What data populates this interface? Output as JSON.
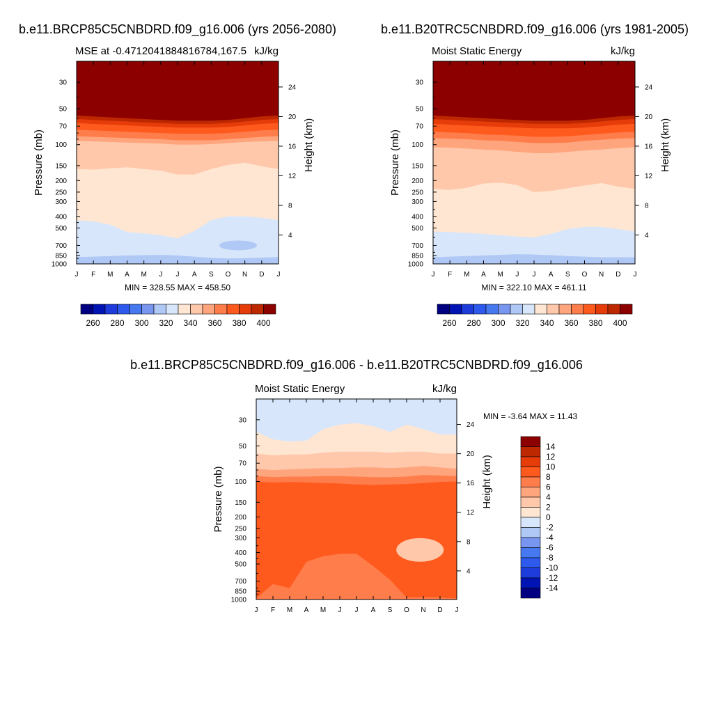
{
  "chart_data": [
    {
      "id": "future",
      "type": "contour",
      "title": "b.e11.BRCP85C5CNBDRD.f09_g16.006 (yrs 2056-2080)",
      "left_string": "MSE at -0.4712041884816784,167.5",
      "right_string": "kJ/kg",
      "ylabel": "Pressure (mb)",
      "ylabel_right": "Height (km)",
      "pressure_ticks": [
        30,
        50,
        70,
        100,
        150,
        200,
        250,
        300,
        400,
        500,
        700,
        850,
        1000
      ],
      "height_ticks": [
        4,
        8,
        12,
        16,
        20,
        24
      ],
      "months": [
        "J",
        "F",
        "M",
        "A",
        "M",
        "J",
        "J",
        "A",
        "S",
        "O",
        "N",
        "D",
        "J"
      ],
      "min_max": "MIN = 328.55 MAX = 458.50",
      "levels": [
        260,
        270,
        280,
        290,
        300,
        310,
        320,
        330,
        340,
        350,
        360,
        370,
        380,
        390,
        400
      ],
      "colorbar_labels": [
        "260",
        "280",
        "300",
        "320",
        "340",
        "360",
        "380",
        "400"
      ],
      "contour_boundaries_p": [
        {
          "level_above": 400,
          "p": [
            57,
            58,
            59,
            60,
            61,
            62,
            63,
            63,
            63,
            62,
            60,
            58,
            57
          ]
        },
        {
          "level_above": 390,
          "p": [
            61,
            62,
            63,
            64,
            65,
            66,
            67,
            67,
            67,
            66,
            64,
            62,
            61
          ]
        },
        {
          "level_above": 380,
          "p": [
            66,
            67,
            68,
            69,
            70,
            71,
            72,
            72,
            72,
            71,
            69,
            67,
            66
          ]
        },
        {
          "level_above": 370,
          "p": [
            75,
            76,
            77,
            78,
            79,
            80,
            81,
            81,
            81,
            80,
            78,
            76,
            75
          ]
        },
        {
          "level_above": 360,
          "p": [
            85,
            86,
            87,
            88,
            89,
            90,
            92,
            92,
            92,
            90,
            88,
            86,
            85
          ]
        },
        {
          "level_above": 350,
          "p": [
            93,
            94,
            95,
            96,
            97,
            98,
            100,
            100,
            99,
            97,
            95,
            94,
            93
          ]
        },
        {
          "level_above": 340,
          "p": [
            160,
            162,
            158,
            155,
            160,
            165,
            178,
            178,
            160,
            148,
            142,
            152,
            160
          ]
        },
        {
          "level_above": 330,
          "p": [
            430,
            440,
            470,
            540,
            555,
            575,
            610,
            530,
            430,
            400,
            400,
            410,
            430
          ]
        },
        {
          "level_above": 320,
          "p": [
            875,
            870,
            860,
            850,
            845,
            840,
            850,
            870,
            890,
            900,
            895,
            885,
            875
          ]
        }
      ],
      "bubbles": [
        {
          "level": 320,
          "month_index": 9.6,
          "p": 700
        }
      ]
    },
    {
      "id": "present",
      "type": "contour",
      "title": "b.e11.B20TRC5CNBDRD.f09_g16.006 (yrs 1981-2005)",
      "left_string": "Moist Static Energy",
      "right_string": "kJ/kg",
      "ylabel": "Pressure (mb)",
      "ylabel_right": "Height (km)",
      "pressure_ticks": [
        30,
        50,
        70,
        100,
        150,
        200,
        250,
        300,
        400,
        500,
        700,
        850,
        1000
      ],
      "height_ticks": [
        4,
        8,
        12,
        16,
        20,
        24
      ],
      "months": [
        "J",
        "F",
        "M",
        "A",
        "M",
        "J",
        "J",
        "A",
        "S",
        "O",
        "N",
        "D",
        "J"
      ],
      "min_max": "MIN = 322.10 MAX = 461.11",
      "levels": [
        260,
        270,
        280,
        290,
        300,
        310,
        320,
        330,
        340,
        350,
        360,
        370,
        380,
        390,
        400
      ],
      "colorbar_labels": [
        "260",
        "280",
        "300",
        "320",
        "340",
        "360",
        "380",
        "400"
      ],
      "contour_boundaries_p": [
        {
          "level_above": 400,
          "p": [
            57,
            58,
            59,
            60,
            61,
            62,
            63,
            63,
            63,
            62,
            60,
            58,
            57
          ]
        },
        {
          "level_above": 390,
          "p": [
            61,
            62,
            63,
            64,
            65,
            66,
            67,
            67,
            67,
            66,
            64,
            62,
            61
          ]
        },
        {
          "level_above": 380,
          "p": [
            67,
            68,
            69,
            70,
            71,
            72,
            73,
            73,
            73,
            72,
            70,
            68,
            67
          ]
        },
        {
          "level_above": 370,
          "p": [
            78,
            79,
            80,
            82,
            83,
            84,
            86,
            86,
            85,
            83,
            81,
            79,
            78
          ]
        },
        {
          "level_above": 360,
          "p": [
            88,
            89,
            90,
            92,
            93,
            95,
            97,
            97,
            96,
            93,
            91,
            89,
            88
          ]
        },
        {
          "level_above": 350,
          "p": [
            105,
            106,
            108,
            110,
            112,
            115,
            118,
            118,
            115,
            112,
            110,
            107,
            105
          ]
        },
        {
          "level_above": 340,
          "p": [
            235,
            240,
            230,
            212,
            208,
            218,
            250,
            245,
            232,
            220,
            210,
            225,
            235
          ]
        },
        {
          "level_above": 330,
          "p": [
            535,
            540,
            550,
            560,
            575,
            590,
            600,
            560,
            510,
            490,
            490,
            510,
            535
          ]
        },
        {
          "level_above": 320,
          "p": [
            880,
            870,
            860,
            850,
            840,
            830,
            835,
            845,
            860,
            870,
            880,
            880,
            880
          ]
        }
      ],
      "bubbles": []
    },
    {
      "id": "difference",
      "type": "contour",
      "title": "b.e11.BRCP85C5CNBDRD.f09_g16.006 - b.e11.B20TRC5CNBDRD.f09_g16.006",
      "left_string": "Moist Static Energy",
      "right_string": "kJ/kg",
      "ylabel": "Pressure (mb)",
      "ylabel_right": "Height (km)",
      "pressure_ticks": [
        30,
        50,
        70,
        100,
        150,
        200,
        250,
        300,
        400,
        500,
        700,
        850,
        1000
      ],
      "height_ticks": [
        4,
        8,
        12,
        16,
        20,
        24
      ],
      "months": [
        "J",
        "F",
        "M",
        "A",
        "M",
        "J",
        "J",
        "A",
        "S",
        "O",
        "N",
        "D",
        "J"
      ],
      "min_max": "MIN =  -3.64 MAX =  11.43",
      "levels": [
        -14,
        -12,
        -10,
        -8,
        -6,
        -4,
        -2,
        0,
        2,
        4,
        6,
        8,
        10,
        12,
        14
      ],
      "colorbar_labels": [
        "14",
        "12",
        "10",
        "8",
        "6",
        "4",
        "2",
        "0",
        "-2",
        "-4",
        "-6",
        "-8",
        "-10",
        "-12",
        "-14"
      ],
      "contour_boundaries_p": [
        {
          "level_above": -2,
          "p": [
            38,
            44,
            46,
            45,
            36,
            33,
            32,
            34,
            38,
            33,
            36,
            40,
            40
          ]
        },
        {
          "level_above": 0,
          "p": [
            58,
            60,
            59,
            59,
            57,
            56,
            56,
            56,
            57,
            56,
            56,
            58,
            58
          ]
        },
        {
          "level_above": 2,
          "p": [
            78,
            80,
            79,
            78,
            77,
            77,
            76,
            76,
            77,
            76,
            74,
            76,
            78
          ]
        },
        {
          "level_above": 4,
          "p": [
            90,
            92,
            91,
            91,
            90,
            90,
            91,
            92,
            92,
            91,
            88,
            89,
            90
          ]
        },
        {
          "level_above": 6,
          "p": [
            100,
            102,
            101,
            102,
            103,
            104,
            106,
            107,
            106,
            105,
            103,
            101,
            100
          ]
        },
        {
          "level_above": 8,
          "p": [
            980,
            740,
            800,
            480,
            430,
            410,
            410,
            520,
            680,
            960,
            960,
            960,
            980
          ]
        }
      ],
      "bubbles": [
        {
          "level": 4,
          "month_index": 9.8,
          "p": 380
        }
      ]
    }
  ]
}
